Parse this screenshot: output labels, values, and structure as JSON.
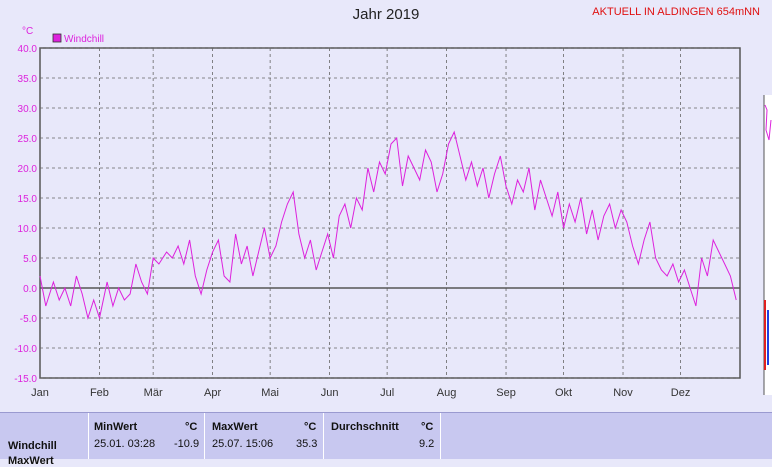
{
  "chart_title": "Jahr 2019",
  "station_label": "AKTUELL IN ALDINGEN 654mNN",
  "colors": {
    "series": "#dd22dd",
    "axis": "#555555",
    "plot_bg": "#e8e8fa"
  },
  "chart_data": {
    "type": "line",
    "title": "Jahr 2019",
    "ylabel": "°C",
    "ylim": [
      -15,
      40
    ],
    "yticks": [
      "40.0",
      "35.0",
      "30.0",
      "25.0",
      "20.0",
      "15.0",
      "10.0",
      "5.0",
      "0.0",
      "-5.0",
      "-10.0",
      "-15.0"
    ],
    "xticks": [
      "Jan",
      "Feb",
      "Mär",
      "Apr",
      "Mai",
      "Jun",
      "Jul",
      "Aug",
      "Sep",
      "Okt",
      "Nov",
      "Dez"
    ],
    "grid": true,
    "legend_position": "top-left",
    "series": [
      {
        "name": "Windchill",
        "color": "#dd22dd",
        "x_unit": "day_of_year",
        "points": [
          [
            1,
            2
          ],
          [
            4,
            -3
          ],
          [
            8,
            1
          ],
          [
            11,
            -2
          ],
          [
            14,
            0
          ],
          [
            17,
            -3
          ],
          [
            20,
            2
          ],
          [
            23,
            -1
          ],
          [
            26,
            -5
          ],
          [
            29,
            -2
          ],
          [
            32,
            -5
          ],
          [
            36,
            1
          ],
          [
            39,
            -3
          ],
          [
            42,
            0
          ],
          [
            45,
            -2
          ],
          [
            48,
            -1
          ],
          [
            51,
            4
          ],
          [
            54,
            1
          ],
          [
            57,
            -1
          ],
          [
            60,
            5
          ],
          [
            63,
            4
          ],
          [
            67,
            6
          ],
          [
            70,
            5
          ],
          [
            73,
            7
          ],
          [
            76,
            4
          ],
          [
            79,
            8
          ],
          [
            82,
            2
          ],
          [
            85,
            -1
          ],
          [
            88,
            3
          ],
          [
            91,
            6
          ],
          [
            94,
            8
          ],
          [
            97,
            2
          ],
          [
            100,
            1
          ],
          [
            103,
            9
          ],
          [
            106,
            4
          ],
          [
            109,
            7
          ],
          [
            112,
            2
          ],
          [
            115,
            6
          ],
          [
            118,
            10
          ],
          [
            121,
            5
          ],
          [
            124,
            7
          ],
          [
            127,
            11
          ],
          [
            130,
            14
          ],
          [
            133,
            16
          ],
          [
            136,
            9
          ],
          [
            139,
            5
          ],
          [
            142,
            8
          ],
          [
            145,
            3
          ],
          [
            148,
            6
          ],
          [
            151,
            9
          ],
          [
            154,
            5
          ],
          [
            157,
            12
          ],
          [
            160,
            14
          ],
          [
            163,
            10
          ],
          [
            166,
            15
          ],
          [
            169,
            13
          ],
          [
            172,
            20
          ],
          [
            175,
            16
          ],
          [
            178,
            21
          ],
          [
            181,
            19
          ],
          [
            184,
            24
          ],
          [
            187,
            25
          ],
          [
            190,
            17
          ],
          [
            193,
            22
          ],
          [
            196,
            20
          ],
          [
            199,
            18
          ],
          [
            202,
            23
          ],
          [
            205,
            21
          ],
          [
            208,
            16
          ],
          [
            211,
            19
          ],
          [
            214,
            24
          ],
          [
            217,
            26
          ],
          [
            220,
            22
          ],
          [
            223,
            18
          ],
          [
            226,
            21
          ],
          [
            229,
            17
          ],
          [
            232,
            20
          ],
          [
            235,
            15
          ],
          [
            238,
            19
          ],
          [
            241,
            22
          ],
          [
            244,
            17
          ],
          [
            247,
            14
          ],
          [
            250,
            18
          ],
          [
            253,
            16
          ],
          [
            256,
            20
          ],
          [
            259,
            13
          ],
          [
            262,
            18
          ],
          [
            265,
            15
          ],
          [
            268,
            12
          ],
          [
            271,
            16
          ],
          [
            274,
            10
          ],
          [
            277,
            14
          ],
          [
            280,
            11
          ],
          [
            283,
            15
          ],
          [
            286,
            9
          ],
          [
            289,
            13
          ],
          [
            292,
            8
          ],
          [
            295,
            12
          ],
          [
            298,
            14
          ],
          [
            301,
            10
          ],
          [
            304,
            13
          ],
          [
            307,
            11
          ],
          [
            310,
            7
          ],
          [
            313,
            4
          ],
          [
            316,
            8
          ],
          [
            319,
            11
          ],
          [
            322,
            5
          ],
          [
            325,
            3
          ],
          [
            328,
            2
          ],
          [
            331,
            4
          ],
          [
            334,
            1
          ],
          [
            337,
            3
          ],
          [
            340,
            0
          ],
          [
            343,
            -3
          ],
          [
            346,
            5
          ],
          [
            349,
            2
          ],
          [
            352,
            8
          ],
          [
            355,
            6
          ],
          [
            358,
            4
          ],
          [
            361,
            2
          ],
          [
            364,
            -2
          ]
        ]
      }
    ]
  },
  "summary": {
    "row_label": "Windchill",
    "row_label2": "MaxWert",
    "min": {
      "header": "MinWert",
      "unit": "°C",
      "datetime": "25.01.  03:28",
      "value": "-10.9"
    },
    "max": {
      "header": "MaxWert",
      "unit": "°C",
      "datetime": "25.07.  15:06",
      "value": "35.3"
    },
    "avg": {
      "header": "Durchschnitt",
      "unit": "°C",
      "value": "9.2"
    }
  }
}
